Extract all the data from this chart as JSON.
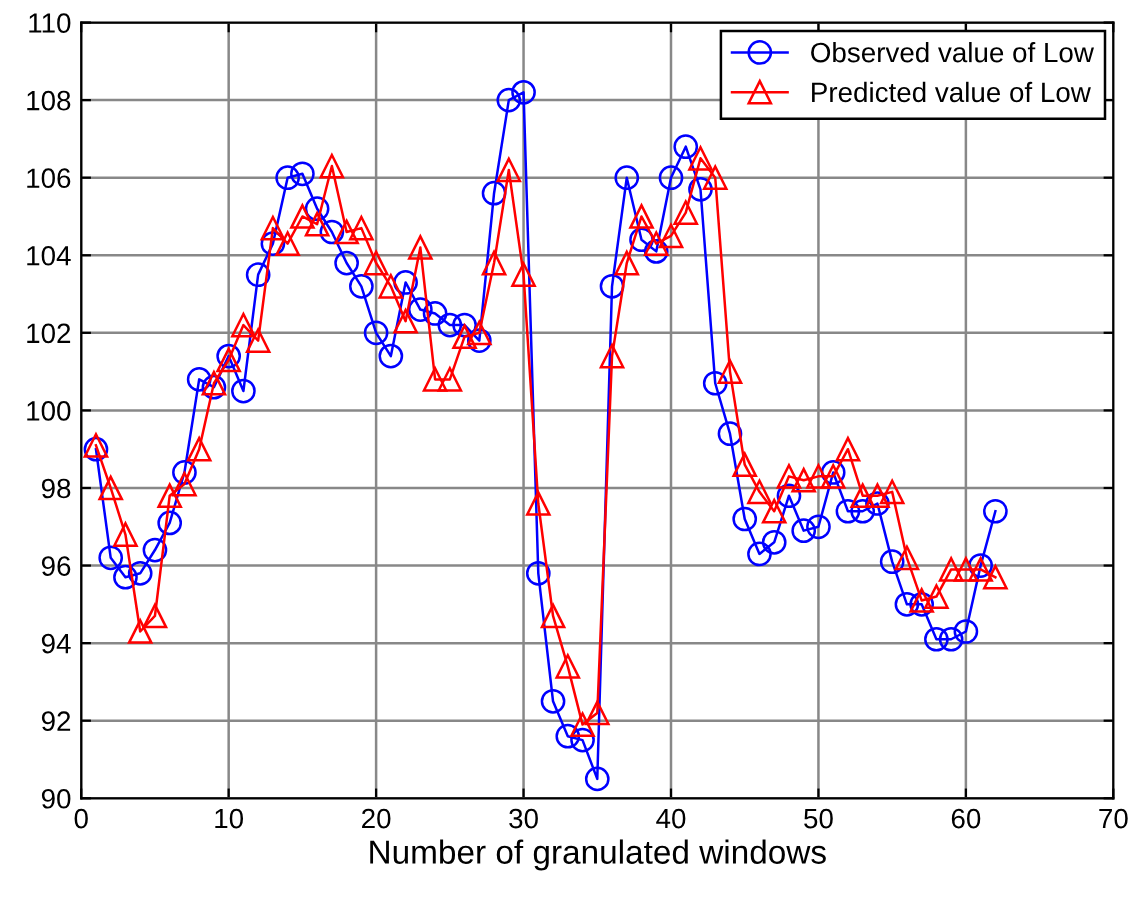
{
  "chart_data": {
    "type": "line",
    "xlabel": "Number of granulated windows",
    "xlim": [
      0,
      70
    ],
    "xticks": [
      0,
      10,
      20,
      30,
      40,
      50,
      60,
      70
    ],
    "ylim": [
      90,
      110
    ],
    "yticks": [
      90,
      92,
      94,
      96,
      98,
      100,
      102,
      104,
      106,
      108,
      110
    ],
    "grid": true,
    "legend": "top right",
    "x": [
      1,
      2,
      3,
      4,
      5,
      6,
      7,
      8,
      9,
      10,
      11,
      12,
      13,
      14,
      15,
      16,
      17,
      18,
      19,
      20,
      21,
      22,
      23,
      24,
      25,
      26,
      27,
      28,
      29,
      30,
      31,
      32,
      33,
      34,
      35,
      36,
      37,
      38,
      39,
      40,
      41,
      42,
      43,
      44,
      45,
      46,
      47,
      48,
      49,
      50,
      51,
      52,
      53,
      54,
      55,
      56,
      57,
      58,
      59,
      60,
      61,
      62
    ],
    "series": [
      {
        "name": "Observed value of Low",
        "color": "#0000ff",
        "marker": "circle",
        "values": [
          99.0,
          96.2,
          95.7,
          95.8,
          96.4,
          97.1,
          98.4,
          100.8,
          100.6,
          101.4,
          100.5,
          103.5,
          104.3,
          106.0,
          106.1,
          105.2,
          104.6,
          103.8,
          103.2,
          102.0,
          101.4,
          103.3,
          102.6,
          102.5,
          102.2,
          102.2,
          101.8,
          105.6,
          108.0,
          108.2,
          95.8,
          92.5,
          91.6,
          91.5,
          90.5,
          103.2,
          106.0,
          104.4,
          104.1,
          106.0,
          106.8,
          105.7,
          100.7,
          99.4,
          97.2,
          96.3,
          96.6,
          97.8,
          96.9,
          97.0,
          98.4,
          97.4,
          97.4,
          97.6,
          96.1,
          95.0,
          95.0,
          94.1,
          94.1,
          94.3,
          96.0,
          97.4
        ]
      },
      {
        "name": "Predicted value of Low",
        "color": "#ff0000",
        "marker": "triangle",
        "values": [
          99.1,
          98.0,
          96.8,
          94.3,
          94.7,
          97.8,
          98.1,
          99.0,
          100.7,
          101.3,
          102.2,
          101.8,
          104.7,
          104.3,
          105.0,
          104.8,
          106.3,
          104.6,
          104.7,
          103.8,
          103.2,
          102.3,
          104.2,
          100.8,
          100.8,
          101.9,
          102.0,
          103.8,
          106.2,
          103.5,
          97.6,
          94.7,
          93.4,
          91.9,
          92.2,
          101.4,
          103.8,
          105.0,
          104.3,
          104.5,
          105.1,
          106.5,
          106.0,
          101.0,
          98.6,
          97.9,
          97.4,
          98.3,
          98.2,
          98.3,
          98.3,
          99.0,
          97.8,
          97.8,
          97.9,
          96.2,
          95.1,
          95.2,
          95.9,
          95.9,
          95.9,
          95.7
        ]
      }
    ]
  }
}
